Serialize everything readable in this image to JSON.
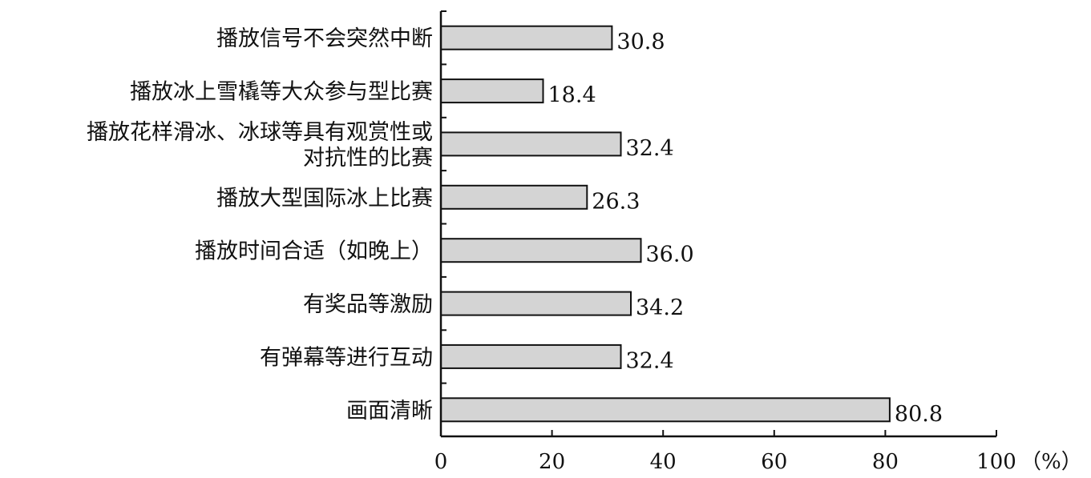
{
  "chart_data": {
    "type": "bar",
    "orientation": "horizontal",
    "categories": [
      [
        "播放信号不会突然中断"
      ],
      [
        "播放冰上雪橇等大众参与型比赛"
      ],
      [
        "播放花样滑冰、冰球等具有观赏性或",
        "对抗性的比赛"
      ],
      [
        "播放大型国际冰上比赛"
      ],
      [
        "播放时间合适（如晚上）"
      ],
      [
        "有奖品等激励"
      ],
      [
        "有弹幕等进行互动"
      ],
      [
        "画面清晰"
      ]
    ],
    "values": [
      30.8,
      18.4,
      32.4,
      26.3,
      36.0,
      34.2,
      32.4,
      80.8
    ],
    "value_labels": [
      "30.8",
      "18.4",
      "32.4",
      "26.3",
      "36.0",
      "34.2",
      "32.4",
      "80.8"
    ],
    "xlim": [
      0,
      100
    ],
    "x_ticks": [
      "0",
      "20",
      "40",
      "60",
      "80",
      "100"
    ],
    "x_unit": "（%）",
    "title": "",
    "xlabel": "",
    "ylabel": "",
    "grid": false,
    "legend": "none",
    "bar_color": "#d4d4d4",
    "bar_edge_color": "#111111"
  }
}
